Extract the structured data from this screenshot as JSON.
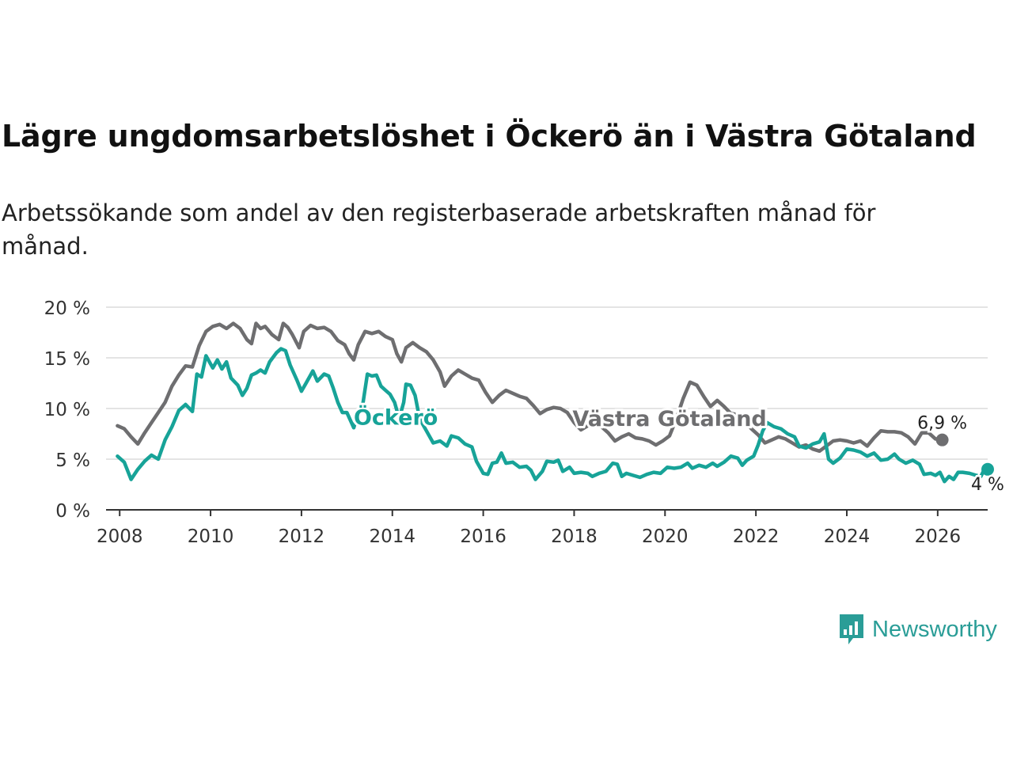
{
  "title": "Lägre ungdomsarbetslöshet i Öckerö än i Västra Götaland",
  "subtitle": "Arbetssökande som andel av den registerbaserade arbetskraften månad för månad.",
  "brand": {
    "name": "Newsworthy",
    "icon": "bar-chart-bubble-icon"
  },
  "colors": {
    "vastra": "#6e6e70",
    "ockero": "#17a398",
    "grid": "#dcdcdc",
    "axis": "#333333"
  },
  "chart_data": {
    "type": "line",
    "title": "Lägre ungdomsarbetslöshet i Öckerö än i Västra Götaland",
    "xlabel": "",
    "ylabel": "",
    "xlim": [
      2007.7,
      2027.1
    ],
    "ylim": [
      0,
      20
    ],
    "x_ticks": [
      2008,
      2010,
      2012,
      2014,
      2016,
      2018,
      2020,
      2022,
      2024,
      2026
    ],
    "y_ticks": [
      0,
      5,
      10,
      15,
      20
    ],
    "y_tick_labels": [
      "0 %",
      "5 %",
      "10 %",
      "15 %",
      "20 %"
    ],
    "series": [
      {
        "name": "Västra Götaland",
        "inline_label": "Västra Götaland",
        "end_label": "6,9 %",
        "points": [
          [
            2007.95,
            8.3
          ],
          [
            2008.1,
            8.0
          ],
          [
            2008.25,
            7.2
          ],
          [
            2008.4,
            6.5
          ],
          [
            2008.55,
            7.6
          ],
          [
            2008.7,
            8.6
          ],
          [
            2008.85,
            9.6
          ],
          [
            2009.0,
            10.6
          ],
          [
            2009.15,
            12.2
          ],
          [
            2009.3,
            13.3
          ],
          [
            2009.45,
            14.2
          ],
          [
            2009.6,
            14.1
          ],
          [
            2009.75,
            16.2
          ],
          [
            2009.9,
            17.6
          ],
          [
            2010.05,
            18.1
          ],
          [
            2010.2,
            18.3
          ],
          [
            2010.35,
            17.9
          ],
          [
            2010.5,
            18.4
          ],
          [
            2010.65,
            17.9
          ],
          [
            2010.8,
            16.8
          ],
          [
            2010.9,
            16.4
          ],
          [
            2011.0,
            18.4
          ],
          [
            2011.1,
            17.9
          ],
          [
            2011.2,
            18.1
          ],
          [
            2011.35,
            17.3
          ],
          [
            2011.5,
            16.8
          ],
          [
            2011.6,
            18.4
          ],
          [
            2011.7,
            18.0
          ],
          [
            2011.8,
            17.3
          ],
          [
            2011.95,
            16.0
          ],
          [
            2012.05,
            17.6
          ],
          [
            2012.2,
            18.2
          ],
          [
            2012.35,
            17.9
          ],
          [
            2012.5,
            18.0
          ],
          [
            2012.65,
            17.6
          ],
          [
            2012.8,
            16.7
          ],
          [
            2012.95,
            16.3
          ],
          [
            2013.05,
            15.4
          ],
          [
            2013.15,
            14.8
          ],
          [
            2013.25,
            16.3
          ],
          [
            2013.4,
            17.6
          ],
          [
            2013.55,
            17.4
          ],
          [
            2013.7,
            17.6
          ],
          [
            2013.85,
            17.1
          ],
          [
            2014.0,
            16.8
          ],
          [
            2014.1,
            15.4
          ],
          [
            2014.2,
            14.6
          ],
          [
            2014.3,
            16.0
          ],
          [
            2014.45,
            16.5
          ],
          [
            2014.6,
            16.0
          ],
          [
            2014.75,
            15.6
          ],
          [
            2014.9,
            14.8
          ],
          [
            2015.05,
            13.6
          ],
          [
            2015.15,
            12.2
          ],
          [
            2015.3,
            13.2
          ],
          [
            2015.45,
            13.8
          ],
          [
            2015.6,
            13.4
          ],
          [
            2015.75,
            13.0
          ],
          [
            2015.9,
            12.8
          ],
          [
            2016.05,
            11.6
          ],
          [
            2016.2,
            10.6
          ],
          [
            2016.35,
            11.3
          ],
          [
            2016.5,
            11.8
          ],
          [
            2016.65,
            11.5
          ],
          [
            2016.8,
            11.2
          ],
          [
            2016.95,
            11.0
          ],
          [
            2017.1,
            10.3
          ],
          [
            2017.25,
            9.5
          ],
          [
            2017.4,
            9.9
          ],
          [
            2017.55,
            10.1
          ],
          [
            2017.7,
            10.0
          ],
          [
            2017.85,
            9.6
          ],
          [
            2018.0,
            8.6
          ],
          [
            2018.15,
            7.9
          ],
          [
            2018.3,
            8.3
          ],
          [
            2018.45,
            8.6
          ],
          [
            2018.6,
            8.2
          ],
          [
            2018.75,
            7.6
          ],
          [
            2018.9,
            6.8
          ],
          [
            2019.05,
            7.2
          ],
          [
            2019.2,
            7.5
          ],
          [
            2019.35,
            7.1
          ],
          [
            2019.5,
            7.0
          ],
          [
            2019.65,
            6.8
          ],
          [
            2019.8,
            6.4
          ],
          [
            2019.95,
            6.8
          ],
          [
            2020.1,
            7.3
          ],
          [
            2020.25,
            9.0
          ],
          [
            2020.4,
            11.0
          ],
          [
            2020.55,
            12.6
          ],
          [
            2020.7,
            12.3
          ],
          [
            2020.85,
            11.2
          ],
          [
            2021.0,
            10.2
          ],
          [
            2021.15,
            10.8
          ],
          [
            2021.3,
            10.2
          ],
          [
            2021.45,
            9.5
          ],
          [
            2021.6,
            9.4
          ],
          [
            2021.75,
            8.8
          ],
          [
            2021.9,
            8.0
          ],
          [
            2022.05,
            7.4
          ],
          [
            2022.2,
            6.6
          ],
          [
            2022.35,
            6.9
          ],
          [
            2022.5,
            7.2
          ],
          [
            2022.65,
            7.0
          ],
          [
            2022.8,
            6.6
          ],
          [
            2022.95,
            6.2
          ],
          [
            2023.1,
            6.4
          ],
          [
            2023.25,
            6.0
          ],
          [
            2023.4,
            5.8
          ],
          [
            2023.55,
            6.3
          ],
          [
            2023.7,
            6.8
          ],
          [
            2023.85,
            6.9
          ],
          [
            2024.0,
            6.8
          ],
          [
            2024.15,
            6.6
          ],
          [
            2024.3,
            6.8
          ],
          [
            2024.45,
            6.3
          ],
          [
            2024.6,
            7.1
          ],
          [
            2024.75,
            7.8
          ],
          [
            2024.9,
            7.7
          ],
          [
            2025.05,
            7.7
          ],
          [
            2025.2,
            7.6
          ],
          [
            2025.35,
            7.2
          ],
          [
            2025.5,
            6.5
          ],
          [
            2025.65,
            7.6
          ],
          [
            2025.8,
            7.6
          ],
          [
            2025.95,
            7.0
          ],
          [
            2026.1,
            6.9
          ]
        ]
      },
      {
        "name": "Öckerö",
        "inline_label": "Öckerö",
        "end_label": "4 %",
        "points": [
          [
            2007.95,
            5.3
          ],
          [
            2008.1,
            4.7
          ],
          [
            2008.25,
            3.0
          ],
          [
            2008.4,
            4.0
          ],
          [
            2008.55,
            4.8
          ],
          [
            2008.7,
            5.4
          ],
          [
            2008.85,
            5.0
          ],
          [
            2009.0,
            6.9
          ],
          [
            2009.15,
            8.2
          ],
          [
            2009.3,
            9.8
          ],
          [
            2009.45,
            10.4
          ],
          [
            2009.6,
            9.7
          ],
          [
            2009.7,
            13.4
          ],
          [
            2009.8,
            13.1
          ],
          [
            2009.9,
            15.2
          ],
          [
            2010.05,
            14.0
          ],
          [
            2010.15,
            14.8
          ],
          [
            2010.25,
            13.9
          ],
          [
            2010.35,
            14.6
          ],
          [
            2010.45,
            13.0
          ],
          [
            2010.6,
            12.3
          ],
          [
            2010.7,
            11.3
          ],
          [
            2010.8,
            12.0
          ],
          [
            2010.9,
            13.3
          ],
          [
            2011.0,
            13.5
          ],
          [
            2011.1,
            13.8
          ],
          [
            2011.2,
            13.5
          ],
          [
            2011.3,
            14.6
          ],
          [
            2011.45,
            15.5
          ],
          [
            2011.55,
            15.9
          ],
          [
            2011.65,
            15.7
          ],
          [
            2011.75,
            14.3
          ],
          [
            2011.9,
            12.8
          ],
          [
            2012.0,
            11.7
          ],
          [
            2012.1,
            12.5
          ],
          [
            2012.25,
            13.7
          ],
          [
            2012.35,
            12.7
          ],
          [
            2012.5,
            13.4
          ],
          [
            2012.6,
            13.2
          ],
          [
            2012.7,
            12.0
          ],
          [
            2012.8,
            10.6
          ],
          [
            2012.9,
            9.6
          ],
          [
            2013.0,
            9.6
          ],
          [
            2013.15,
            8.1
          ],
          [
            2013.25,
            9.6
          ],
          [
            2013.35,
            10.4
          ],
          [
            2013.45,
            13.4
          ],
          [
            2013.55,
            13.2
          ],
          [
            2013.65,
            13.3
          ],
          [
            2013.75,
            12.2
          ],
          [
            2013.85,
            11.8
          ],
          [
            2013.95,
            11.4
          ],
          [
            2014.05,
            10.6
          ],
          [
            2014.15,
            9.0
          ],
          [
            2014.25,
            10.6
          ],
          [
            2014.3,
            12.4
          ],
          [
            2014.4,
            12.3
          ],
          [
            2014.5,
            11.3
          ],
          [
            2014.6,
            9.0
          ],
          [
            2014.75,
            7.8
          ],
          [
            2014.9,
            6.6
          ],
          [
            2015.05,
            6.8
          ],
          [
            2015.2,
            6.3
          ],
          [
            2015.3,
            7.3
          ],
          [
            2015.45,
            7.1
          ],
          [
            2015.6,
            6.5
          ],
          [
            2015.75,
            6.2
          ],
          [
            2015.85,
            4.8
          ],
          [
            2016.0,
            3.6
          ],
          [
            2016.1,
            3.5
          ],
          [
            2016.2,
            4.6
          ],
          [
            2016.3,
            4.7
          ],
          [
            2016.4,
            5.6
          ],
          [
            2016.5,
            4.6
          ],
          [
            2016.65,
            4.7
          ],
          [
            2016.8,
            4.2
          ],
          [
            2016.95,
            4.3
          ],
          [
            2017.05,
            3.9
          ],
          [
            2017.15,
            3.0
          ],
          [
            2017.3,
            3.8
          ],
          [
            2017.4,
            4.8
          ],
          [
            2017.55,
            4.7
          ],
          [
            2017.65,
            4.9
          ],
          [
            2017.75,
            3.8
          ],
          [
            2017.9,
            4.2
          ],
          [
            2018.0,
            3.6
          ],
          [
            2018.15,
            3.7
          ],
          [
            2018.3,
            3.6
          ],
          [
            2018.4,
            3.3
          ],
          [
            2018.55,
            3.6
          ],
          [
            2018.7,
            3.8
          ],
          [
            2018.85,
            4.6
          ],
          [
            2018.95,
            4.5
          ],
          [
            2019.05,
            3.3
          ],
          [
            2019.15,
            3.6
          ],
          [
            2019.3,
            3.4
          ],
          [
            2019.45,
            3.2
          ],
          [
            2019.6,
            3.5
          ],
          [
            2019.75,
            3.7
          ],
          [
            2019.9,
            3.6
          ],
          [
            2020.05,
            4.2
          ],
          [
            2020.2,
            4.1
          ],
          [
            2020.35,
            4.2
          ],
          [
            2020.5,
            4.6
          ],
          [
            2020.6,
            4.1
          ],
          [
            2020.75,
            4.4
          ],
          [
            2020.9,
            4.2
          ],
          [
            2021.05,
            4.6
          ],
          [
            2021.15,
            4.3
          ],
          [
            2021.3,
            4.7
          ],
          [
            2021.45,
            5.3
          ],
          [
            2021.6,
            5.1
          ],
          [
            2021.7,
            4.4
          ],
          [
            2021.8,
            4.9
          ],
          [
            2021.95,
            5.3
          ],
          [
            2022.05,
            6.4
          ],
          [
            2022.15,
            7.8
          ],
          [
            2022.25,
            8.6
          ],
          [
            2022.4,
            8.2
          ],
          [
            2022.55,
            8.0
          ],
          [
            2022.7,
            7.5
          ],
          [
            2022.85,
            7.2
          ],
          [
            2022.95,
            6.3
          ],
          [
            2023.1,
            6.1
          ],
          [
            2023.25,
            6.5
          ],
          [
            2023.4,
            6.7
          ],
          [
            2023.5,
            7.5
          ],
          [
            2023.6,
            5.0
          ],
          [
            2023.7,
            4.6
          ],
          [
            2023.85,
            5.1
          ],
          [
            2024.0,
            6.0
          ],
          [
            2024.15,
            5.9
          ],
          [
            2024.3,
            5.7
          ],
          [
            2024.45,
            5.3
          ],
          [
            2024.6,
            5.6
          ],
          [
            2024.75,
            4.9
          ],
          [
            2024.9,
            5.0
          ],
          [
            2025.05,
            5.5
          ],
          [
            2025.15,
            5.0
          ],
          [
            2025.3,
            4.6
          ],
          [
            2025.45,
            4.9
          ],
          [
            2025.6,
            4.5
          ],
          [
            2025.7,
            3.5
          ],
          [
            2025.85,
            3.6
          ],
          [
            2025.95,
            3.4
          ],
          [
            2026.05,
            3.7
          ],
          [
            2026.15,
            2.8
          ],
          [
            2026.25,
            3.3
          ],
          [
            2026.35,
            3.0
          ],
          [
            2026.45,
            3.7
          ],
          [
            2026.55,
            3.7
          ],
          [
            2026.7,
            3.6
          ],
          [
            2026.85,
            3.4
          ],
          [
            2026.95,
            3.3
          ],
          [
            2027.05,
            4.2
          ],
          [
            2027.1,
            4.0
          ]
        ]
      }
    ]
  }
}
